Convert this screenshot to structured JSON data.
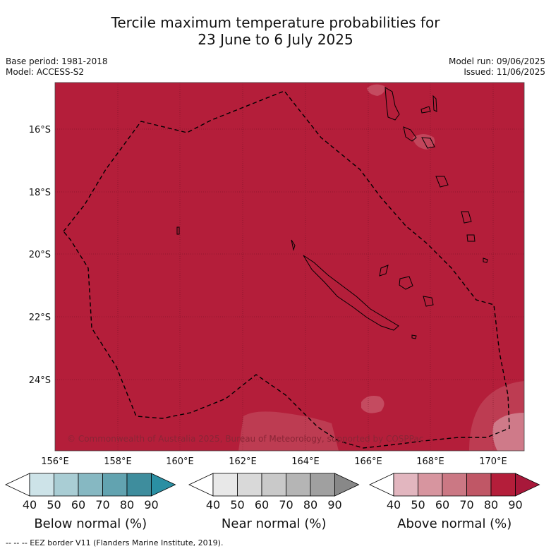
{
  "title_line1": "Tercile maximum temperature probabilities for",
  "title_line2": "23 June to 6 July 2025",
  "base_period": "Base period: 1981-2018",
  "model": "Model: ACCESS-S2",
  "model_run": "Model run: 09/06/2025",
  "issued": "Issued: 11/06/2025",
  "copyright": "© Commonwealth of Australia 2025, Bureau of Meteorology, supported by COSPPac",
  "lat_labels": [
    "16°S",
    "18°S",
    "20°S",
    "22°S",
    "24°S"
  ],
  "lon_labels": [
    "156°E",
    "158°E",
    "160°E",
    "162°E",
    "164°E",
    "166°E",
    "168°E",
    "170°E"
  ],
  "colorbars": [
    {
      "label": "Below normal (%)",
      "ticks": [
        "40",
        "50",
        "60",
        "70",
        "80",
        "90"
      ],
      "colors": [
        "#ffffff",
        "#cde3e8",
        "#a9cdd4",
        "#86b8c2",
        "#62a3b0",
        "#3e8d9d",
        "#2a8fa3"
      ]
    },
    {
      "label": "Near normal (%)",
      "ticks": [
        "40",
        "50",
        "60",
        "70",
        "80",
        "90"
      ],
      "colors": [
        "#ffffff",
        "#e8e8e8",
        "#d9d9d9",
        "#c9c9c9",
        "#b5b5b5",
        "#a0a0a0",
        "#888888"
      ]
    },
    {
      "label": "Above normal (%)",
      "ticks": [
        "40",
        "50",
        "60",
        "70",
        "80",
        "90"
      ],
      "colors": [
        "#ffffff",
        "#e2b6bf",
        "#d7959f",
        "#cb7884",
        "#c05766",
        "#b41e3a",
        "#a8183a"
      ]
    }
  ],
  "map_fill_color": "#b41e3a",
  "footer": "--  --  -- EEZ border V11 (Flanders Marine Institute, 2019)."
}
